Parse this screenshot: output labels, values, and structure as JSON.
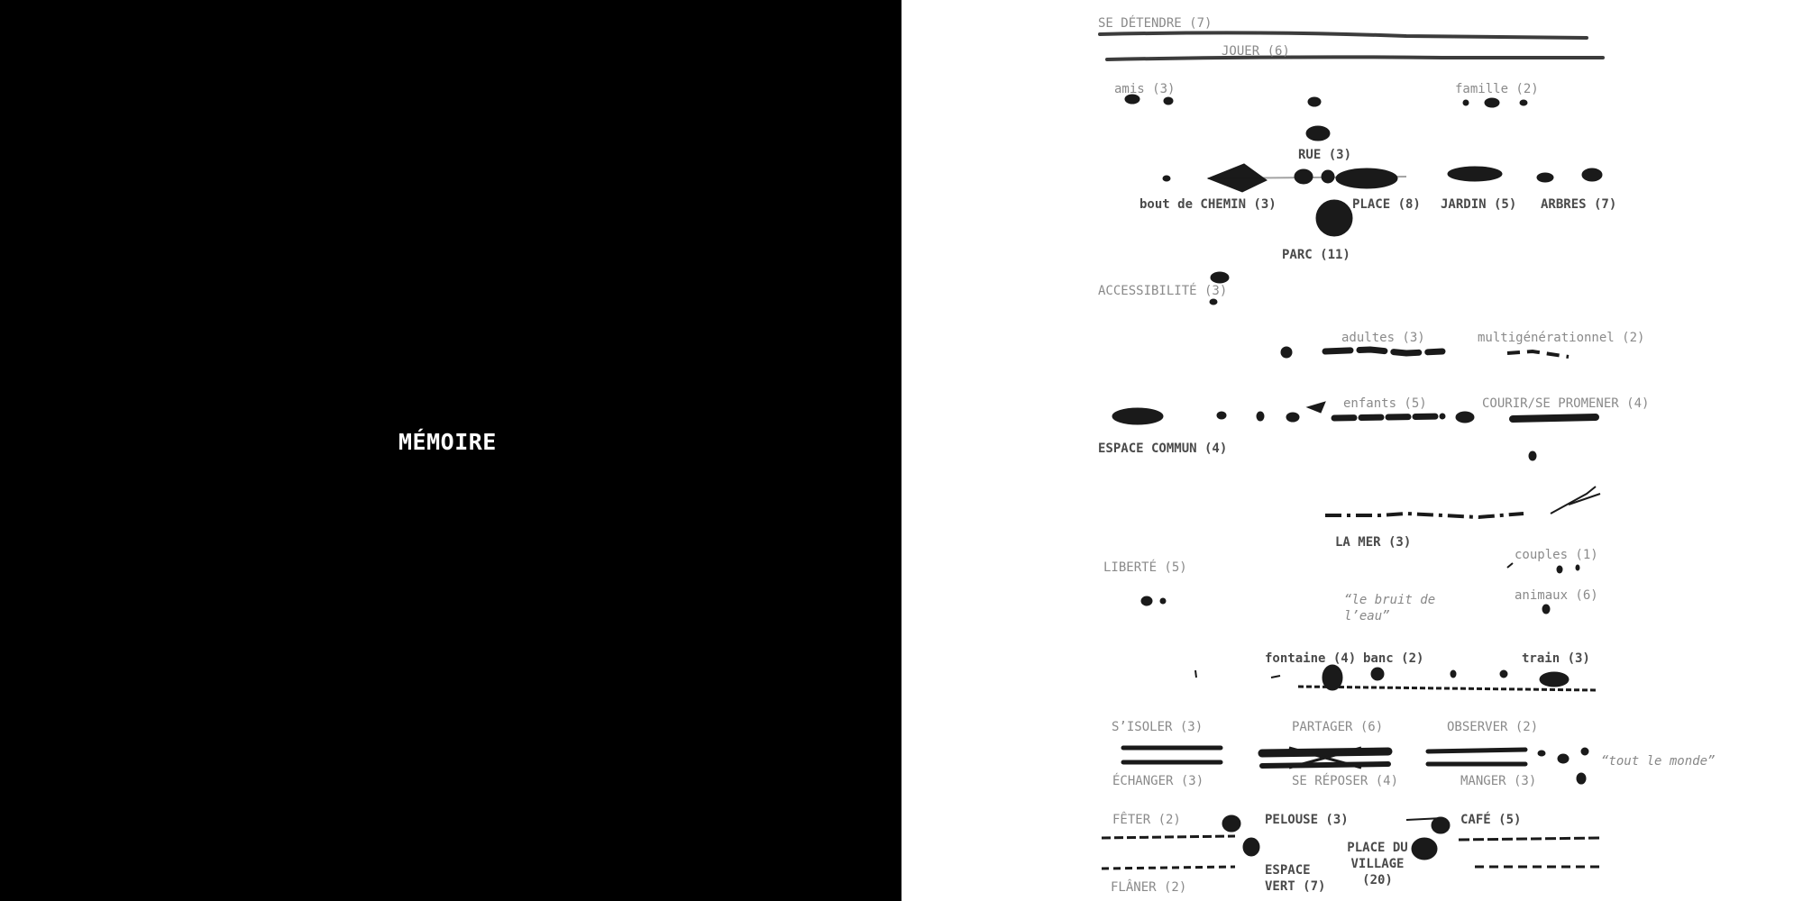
{
  "left": {
    "title": "MÉMOIRE"
  },
  "right": {
    "labels": {
      "se_detendre": "SE DÉTENDRE (7)",
      "jouer": "JOUER (6)",
      "amis": "amis (3)",
      "famille": "famille (2)",
      "rue": "RUE (3)",
      "bout_de_chemin": "bout de CHEMIN (3)",
      "place": "PLACE (8)",
      "jardin": "JARDIN (5)",
      "arbres": "ARBRES (7)",
      "parc": "PARC (11)",
      "accessibilite": "ACCESSIBILITÉ (3)",
      "adultes": "adultes (3)",
      "multigenerationnel": "multigénérationnel (2)",
      "enfants": "enfants (5)",
      "courir": "COURIR/SE PROMENER (4)",
      "espace_commun": "ESPACE COMMUN (4)",
      "la_mer": "LA MER (3)",
      "liberte": "LIBERTÉ (5)",
      "couples": "couples (1)",
      "animaux": "animaux (6)",
      "bruit_eau": "“le bruit de l’eau”",
      "fontaine": "fontaine (4)",
      "banc": "banc (2)",
      "train": "train (3)",
      "sisoler": "S’ISOLER (3)",
      "partager": "PARTAGER (6)",
      "observer": "OBSERVER (2)",
      "tout_le_monde": "“tout le monde”",
      "echanger": "ÉCHANGER (3)",
      "se_reposer": "SE RÉPOSER (4)",
      "manger": "MANGER (3)",
      "feter": "FÊTER (2)",
      "pelouse": "PELOUSE (3)",
      "cafe": "CAFÉ (5)",
      "place_du_village": "PLACE DU VILLAGE (20)",
      "espace_vert": "ESPACE VERT (7)",
      "flaner": "FLÂNER (2)"
    }
  }
}
